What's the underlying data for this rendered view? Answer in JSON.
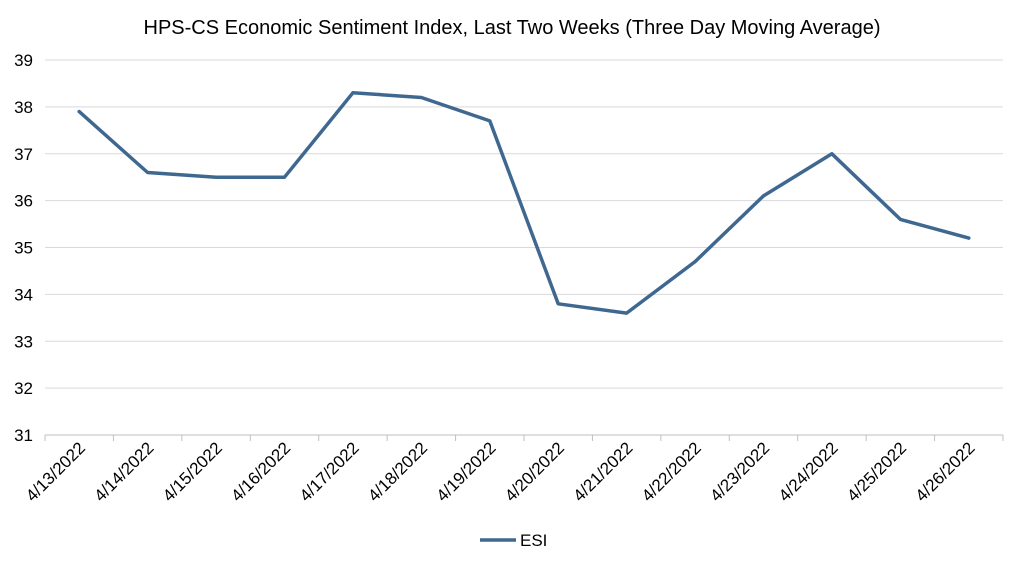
{
  "chart_data": {
    "type": "line",
    "title": "HPS-CS Economic Sentiment Index, Last Two Weeks (Three Day Moving Average)",
    "xlabel": "",
    "ylabel": "",
    "ylim": [
      31,
      39
    ],
    "yticks": [
      "31",
      "32",
      "33",
      "34",
      "35",
      "36",
      "37",
      "38",
      "39"
    ],
    "categories": [
      "4/13/2022",
      "4/14/2022",
      "4/15/2022",
      "4/16/2022",
      "4/17/2022",
      "4/18/2022",
      "4/19/2022",
      "4/20/2022",
      "4/21/2022",
      "4/22/2022",
      "4/23/2022",
      "4/24/2022",
      "4/25/2022",
      "4/26/2022"
    ],
    "series": [
      {
        "name": "ESI",
        "color": "#3f6891",
        "values": [
          37.9,
          36.6,
          36.5,
          36.5,
          38.3,
          38.2,
          37.7,
          33.8,
          33.6,
          34.7,
          36.1,
          37.0,
          35.6,
          35.2
        ]
      }
    ],
    "grid": true,
    "legend_position": "bottom"
  }
}
